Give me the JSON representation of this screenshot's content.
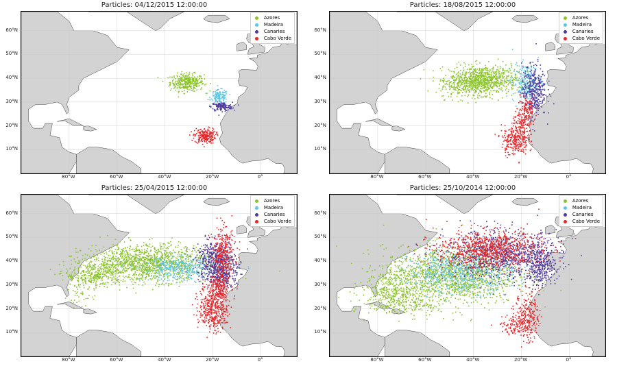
{
  "legend": [
    {
      "label": "Azores",
      "color": "#8bc52b"
    },
    {
      "label": "Madeira",
      "color": "#5ec6e4"
    },
    {
      "label": "Canaries",
      "color": "#4d3a9c"
    },
    {
      "label": "Cabo Verde",
      "color": "#e8262a"
    }
  ],
  "axes": {
    "lat_labels": [
      "60°N",
      "50°N",
      "40°N",
      "30°N",
      "20°N",
      "10°N"
    ],
    "lat_values": [
      60,
      50,
      40,
      30,
      20,
      10
    ],
    "lon_labels": [
      "80°W",
      "60°W",
      "40°W",
      "20°W",
      "0°"
    ],
    "lon_values": [
      -80,
      -60,
      -40,
      -20,
      0
    ],
    "lon_range": [
      -100,
      15
    ],
    "lat_range": [
      0,
      68
    ]
  },
  "panels": [
    {
      "title": "Particles: 04/12/2015 12:00:00",
      "position": "top-left"
    },
    {
      "title": "Particles: 18/08/2015 12:00:00",
      "position": "top-right"
    },
    {
      "title": "Particles: 25/04/2015 12:00:00",
      "position": "bottom-left"
    },
    {
      "title": "Particles: 25/10/2014 12:00:00",
      "position": "bottom-right"
    }
  ]
}
